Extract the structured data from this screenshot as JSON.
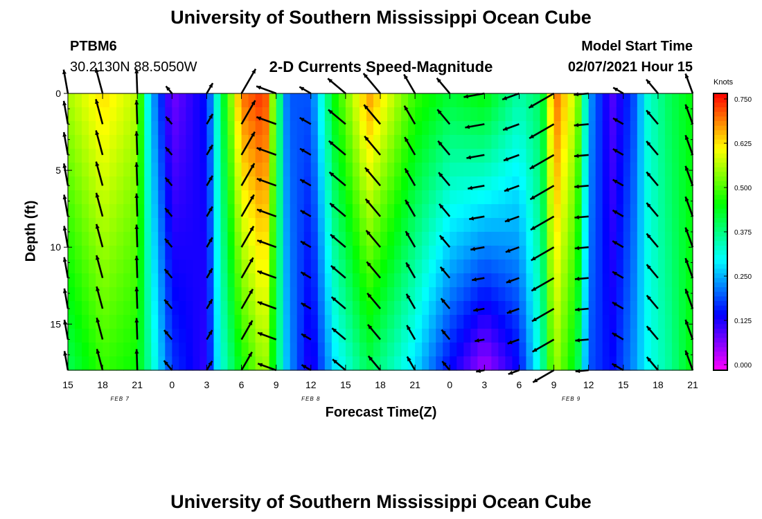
{
  "page": {
    "title_top": "University of Southern Mississippi Ocean Cube",
    "title_bottom": "University of Southern Mississippi Ocean Cube",
    "station_id": "PTBM6",
    "station_coords": "30.2130N 88.5050W",
    "plot_title": "2-D Currents Speed-Magnitude",
    "model_start_label": "Model Start Time",
    "model_start_value": "02/07/2021 Hour 15"
  },
  "chart_data": {
    "type": "heatmap",
    "title": "2-D Currents Speed-Magnitude",
    "xlabel": "Forecast Time(Z)",
    "ylabel": "Depth (ft)",
    "x_tick_labels": [
      "15",
      "18",
      "21",
      "0",
      "3",
      "6",
      "9",
      "12",
      "15",
      "18",
      "21",
      "0",
      "3",
      "6",
      "9",
      "12",
      "15",
      "18",
      "21"
    ],
    "date_labels": [
      {
        "text": "FEB 7",
        "hour_index": 4.5
      },
      {
        "text": "FEB 8",
        "hour_index": 21
      },
      {
        "text": "FEB 9",
        "hour_index": 43.5
      }
    ],
    "x_unit": "forecast hour since 02/07/2021 15Z",
    "xlim": [
      0,
      54
    ],
    "y_ticks": [
      0,
      5,
      10,
      15
    ],
    "ylim": [
      0,
      18
    ],
    "y_inverted": true,
    "colorbar": {
      "label": "Knots",
      "ticks": [
        "0.750",
        "0.625",
        "0.500",
        "0.375",
        "0.250",
        "0.125",
        "0.000"
      ],
      "range": [
        0,
        0.75
      ]
    },
    "arrow_hours": [
      0,
      3,
      6,
      9,
      12,
      15,
      18,
      21,
      24,
      27,
      30,
      33,
      36,
      39,
      42,
      45,
      48,
      51,
      54
    ],
    "arrow_depths_ft": [
      0,
      2,
      4,
      6,
      8,
      10,
      12,
      14,
      16,
      18
    ],
    "speed_profile_by_hour": [
      {
        "hour": 0,
        "surface": 0.55,
        "bottom": 0.4
      },
      {
        "hour": 3,
        "surface": 0.62,
        "bottom": 0.48
      },
      {
        "hour": 6,
        "surface": 0.56,
        "bottom": 0.45
      },
      {
        "hour": 7,
        "surface": 0.28,
        "bottom": 0.36
      },
      {
        "hour": 9,
        "surface": 0.08,
        "bottom": 0.18
      },
      {
        "hour": 12,
        "surface": 0.16,
        "bottom": 0.12
      },
      {
        "hour": 13,
        "surface": 0.35,
        "bottom": 0.3
      },
      {
        "hour": 15,
        "surface": 0.68,
        "bottom": 0.45
      },
      {
        "hour": 17,
        "surface": 0.73,
        "bottom": 0.55
      },
      {
        "hour": 18,
        "surface": 0.45,
        "bottom": 0.4
      },
      {
        "hour": 19,
        "surface": 0.2,
        "bottom": 0.25
      },
      {
        "hour": 21,
        "surface": 0.2,
        "bottom": 0.12
      },
      {
        "hour": 23,
        "surface": 0.45,
        "bottom": 0.28
      },
      {
        "hour": 26,
        "surface": 0.66,
        "bottom": 0.4
      },
      {
        "hour": 30,
        "surface": 0.48,
        "bottom": 0.28
      },
      {
        "hour": 33,
        "surface": 0.42,
        "bottom": 0.15
      },
      {
        "hour": 36,
        "surface": 0.45,
        "bottom": 0.05
      },
      {
        "hour": 39,
        "surface": 0.35,
        "bottom": 0.15
      },
      {
        "hour": 41,
        "surface": 0.4,
        "bottom": 0.35
      },
      {
        "hour": 42,
        "surface": 0.7,
        "bottom": 0.55
      },
      {
        "hour": 44,
        "surface": 0.55,
        "bottom": 0.42
      },
      {
        "hour": 45,
        "surface": 0.25,
        "bottom": 0.2
      },
      {
        "hour": 47,
        "surface": 0.1,
        "bottom": 0.15
      },
      {
        "hour": 49,
        "surface": 0.2,
        "bottom": 0.24
      },
      {
        "hour": 50,
        "surface": 0.32,
        "bottom": 0.3
      },
      {
        "hour": 52,
        "surface": 0.4,
        "bottom": 0.36
      },
      {
        "hour": 54,
        "surface": 0.45,
        "bottom": 0.45
      }
    ],
    "direction_deg_by_hour": [
      {
        "hour": 0,
        "deg": 350
      },
      {
        "hour": 3,
        "deg": 345
      },
      {
        "hour": 6,
        "deg": 358
      },
      {
        "hour": 9,
        "deg": 320
      },
      {
        "hour": 12,
        "deg": 30
      },
      {
        "hour": 15,
        "deg": 30
      },
      {
        "hour": 18,
        "deg": 290
      },
      {
        "hour": 21,
        "deg": 300
      },
      {
        "hour": 24,
        "deg": 310
      },
      {
        "hour": 27,
        "deg": 320
      },
      {
        "hour": 30,
        "deg": 330
      },
      {
        "hour": 33,
        "deg": 320
      },
      {
        "hour": 36,
        "deg": 260
      },
      {
        "hour": 39,
        "deg": 250
      },
      {
        "hour": 42,
        "deg": 240
      },
      {
        "hour": 45,
        "deg": 265
      },
      {
        "hour": 48,
        "deg": 300
      },
      {
        "hour": 51,
        "deg": 320
      },
      {
        "hour": 54,
        "deg": 340
      }
    ]
  }
}
